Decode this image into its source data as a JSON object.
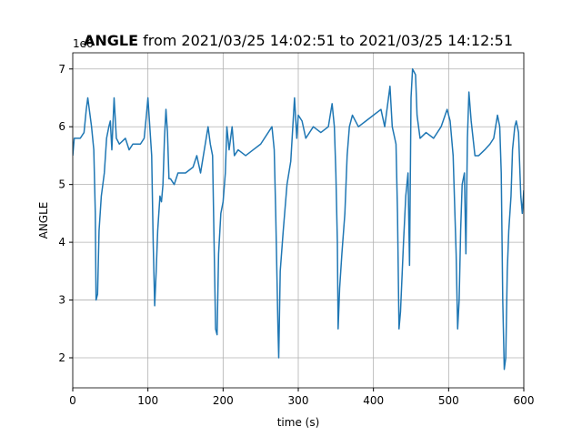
{
  "chart_data": {
    "type": "line",
    "title_bold": "ANGLE",
    "title": "from 2021/03/25 14:02:51 to 2021/03/25 14:12:51",
    "y_offset_label": "1e6",
    "x_label": "time (s)",
    "y_label": "ANGLE",
    "xlim": [
      0,
      600
    ],
    "xticks": [
      0,
      100,
      200,
      300,
      400,
      500,
      600
    ],
    "ylim": [
      1.48,
      7.28
    ],
    "yticks": [
      2,
      3,
      4,
      5,
      6,
      7
    ],
    "grid": true,
    "x": [
      0,
      2,
      10,
      15,
      18,
      20,
      22,
      25,
      28,
      30,
      31,
      33,
      35,
      38,
      40,
      42,
      45,
      48,
      50,
      52,
      55,
      58,
      62,
      70,
      75,
      80,
      90,
      95,
      98,
      100,
      102,
      105,
      107,
      109,
      111,
      113,
      116,
      118,
      120,
      122,
      124,
      126,
      128,
      130,
      135,
      140,
      150,
      160,
      165,
      170,
      175,
      180,
      183,
      186,
      188,
      190,
      192,
      194,
      197,
      200,
      203,
      205,
      208,
      212,
      215,
      220,
      230,
      240,
      250,
      260,
      265,
      268,
      270,
      273,
      274,
      276,
      280,
      285,
      290,
      295,
      298,
      300,
      305,
      310,
      320,
      330,
      340,
      345,
      348,
      350,
      352,
      353,
      355,
      358,
      362,
      365,
      368,
      372,
      380,
      390,
      400,
      410,
      415,
      420,
      422,
      425,
      430,
      432,
      434,
      436,
      440,
      443,
      446,
      448,
      450,
      452,
      456,
      458,
      462,
      470,
      480,
      490,
      498,
      502,
      506,
      510,
      512,
      514,
      516,
      518,
      521,
      523,
      525,
      527,
      530,
      535,
      540,
      548,
      555,
      560,
      565,
      568,
      570,
      572,
      574,
      576,
      578,
      580,
      583,
      585,
      588,
      590,
      593,
      596,
      598,
      600
    ],
    "series": [
      {
        "name": "ANGLE",
        "color": "#1f77b4",
        "values": [
          5.5,
          5.8,
          5.8,
          5.9,
          6.3,
          6.5,
          6.3,
          6.0,
          5.6,
          4.5,
          3.0,
          3.1,
          4.2,
          4.8,
          5.0,
          5.2,
          5.8,
          6.0,
          6.1,
          5.6,
          6.5,
          5.8,
          5.7,
          5.8,
          5.6,
          5.7,
          5.7,
          5.8,
          6.2,
          6.5,
          6.1,
          5.5,
          4.0,
          2.9,
          3.5,
          4.2,
          4.8,
          4.7,
          5.0,
          5.8,
          6.3,
          5.9,
          5.1,
          5.1,
          5.0,
          5.2,
          5.2,
          5.3,
          5.5,
          5.2,
          5.6,
          6.0,
          5.7,
          5.5,
          4.0,
          2.5,
          2.4,
          3.8,
          4.5,
          4.7,
          5.2,
          6.0,
          5.6,
          6.0,
          5.5,
          5.6,
          5.5,
          5.6,
          5.7,
          5.9,
          6.0,
          5.6,
          4.5,
          2.5,
          2.0,
          3.5,
          4.2,
          5.0,
          5.4,
          6.5,
          5.8,
          6.2,
          6.1,
          5.8,
          6.0,
          5.9,
          6.0,
          6.4,
          6.0,
          5.2,
          4.0,
          2.5,
          3.2,
          3.8,
          4.5,
          5.5,
          6.0,
          6.2,
          6.0,
          6.1,
          6.2,
          6.3,
          6.0,
          6.5,
          6.7,
          6.0,
          5.7,
          4.5,
          2.5,
          2.8,
          4.0,
          4.8,
          5.2,
          3.6,
          6.5,
          7.0,
          6.9,
          6.2,
          5.8,
          5.9,
          5.8,
          6.0,
          6.3,
          6.1,
          5.5,
          3.8,
          2.5,
          3.0,
          4.2,
          5.0,
          5.2,
          3.8,
          5.8,
          6.6,
          6.1,
          5.5,
          5.5,
          5.6,
          5.7,
          5.8,
          6.2,
          6.0,
          5.2,
          3.0,
          1.8,
          2.0,
          3.5,
          4.2,
          4.8,
          5.6,
          6.0,
          6.1,
          5.9,
          4.8,
          4.5,
          4.9
        ]
      }
    ]
  }
}
